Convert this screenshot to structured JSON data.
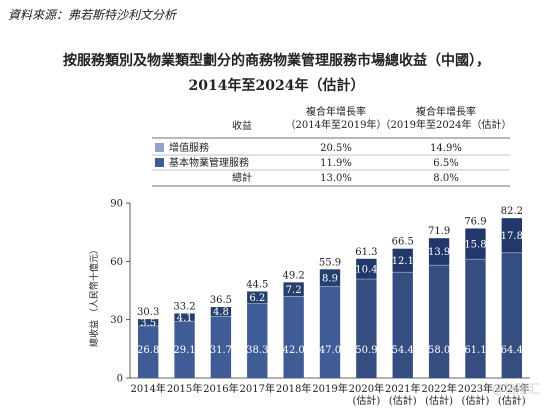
{
  "source": "資料來源：弗若斯特沙利文分析",
  "title_line1": "按服務類別及物業類型劃分的商務物業管理服務市場總收益（中國），",
  "title_line2": "2014年至2024年（估計）",
  "table": {
    "col_label": "收益",
    "col1_header": [
      "複合年增長率",
      "（2014年至2019年）"
    ],
    "col2_header": [
      "複合年增長率",
      "（2019年至2024年（估計）"
    ],
    "rows": [
      {
        "label": "增值服務",
        "cagr1": "20.5%",
        "cagr2": "14.9%",
        "swatch": "#8fa3cd"
      },
      {
        "label": "基本物業管理服務",
        "cagr1": "11.9%",
        "cagr2": "6.5%",
        "swatch": "#3f5c96"
      },
      {
        "label": "總計",
        "cagr1": "13.0%",
        "cagr2": "8.0%"
      }
    ]
  },
  "watermark": "@格隆汇",
  "chart_data": {
    "type": "bar",
    "stacked": true,
    "categories": [
      "2014年",
      "2015年",
      "2016年",
      "2017年",
      "2018年",
      "2019年",
      "2020年\n(估計)",
      "2021年\n(估計)",
      "2022年\n(估計)",
      "2023年\n(估計)",
      "2024年\n(估計)"
    ],
    "series": [
      {
        "name": "基本物業管理服務",
        "values": [
          26.8,
          29.1,
          31.7,
          38.3,
          42.0,
          47.0,
          50.9,
          54.4,
          58.0,
          61.1,
          64.4
        ]
      },
      {
        "name": "增值服務",
        "values": [
          3.5,
          4.1,
          4.8,
          6.2,
          7.2,
          8.9,
          10.4,
          12.1,
          13.9,
          15.8,
          17.8
        ]
      }
    ],
    "totals": [
      30.3,
      33.2,
      36.5,
      44.5,
      49.2,
      55.9,
      61.3,
      66.5,
      71.9,
      76.9,
      82.2
    ],
    "ylabel": "總收益 （人民幣十億元）",
    "ylim": [
      0,
      90
    ],
    "yticks": [
      0,
      30,
      60,
      90
    ],
    "grid": false,
    "colors": {
      "base_light": "#3f5c96",
      "base_dark": "#354d80",
      "vas_light": "#26406e",
      "vas_dark": "#22386a",
      "label_text": "#ffffff"
    }
  }
}
